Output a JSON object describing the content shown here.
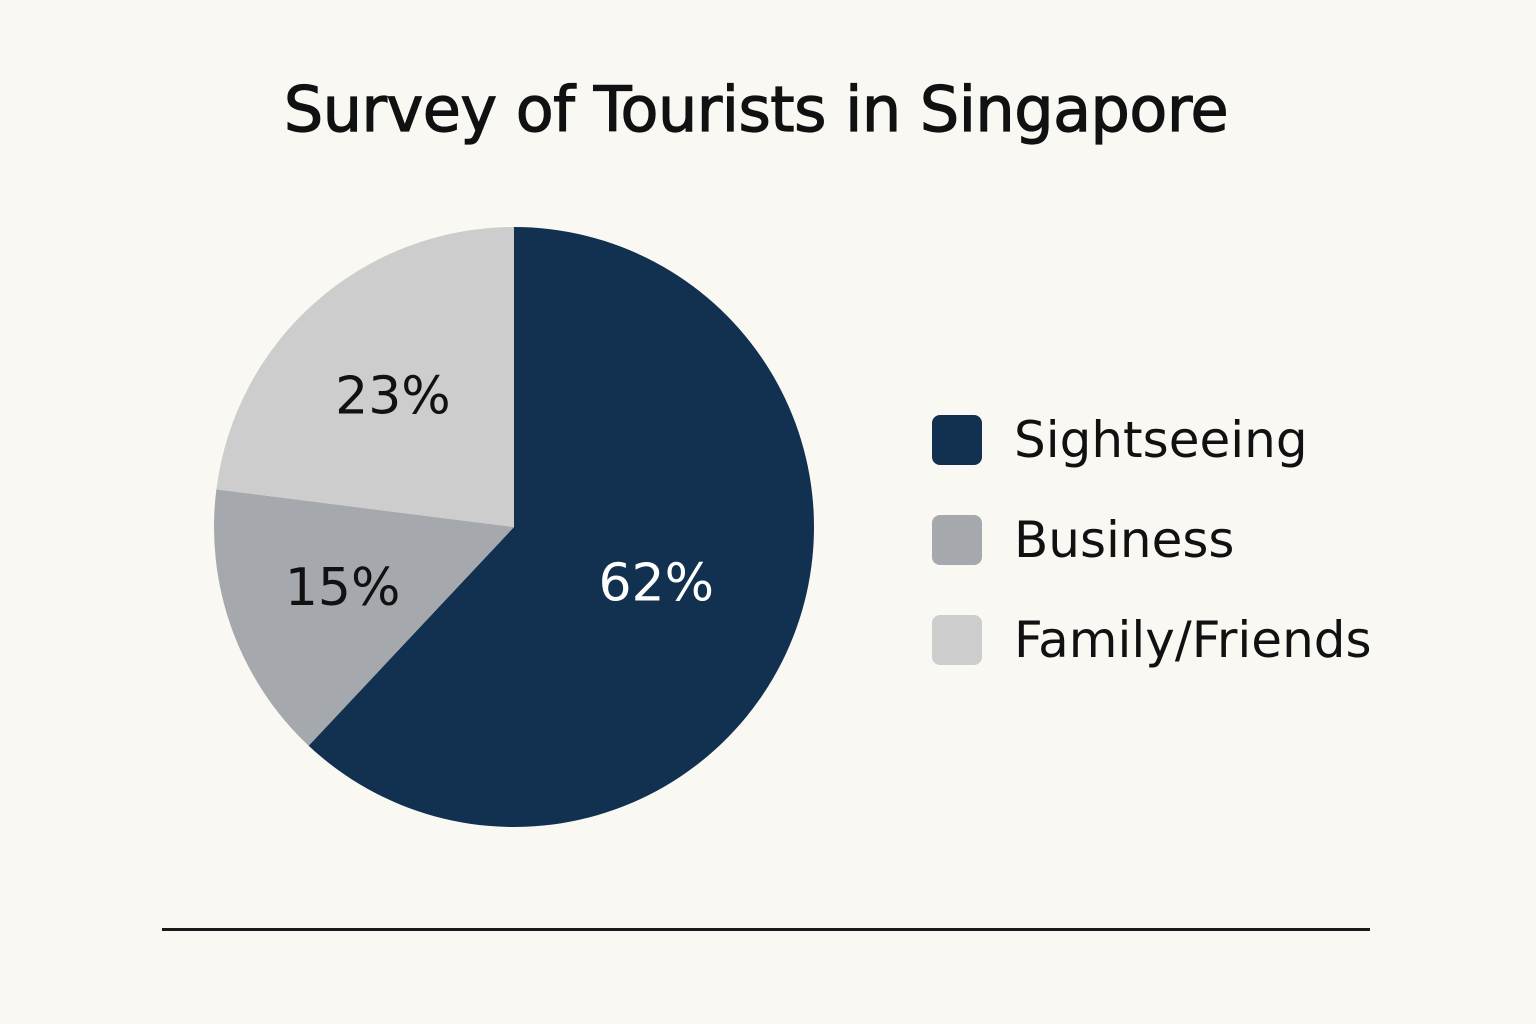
{
  "chart_data": {
    "type": "pie",
    "title": "Survey of Tourists in Singapore",
    "slices": [
      {
        "label": "Sightseeing",
        "value": 62,
        "display": "62%",
        "color": "#12304f",
        "text_color": "#ffffff"
      },
      {
        "label": "Business",
        "value": 15,
        "display": "15%",
        "color": "#a5a8ad",
        "text_color": "#111111"
      },
      {
        "label": "Family/Friends",
        "value": 23,
        "display": "23%",
        "color": "#cdcdcd",
        "text_color": "#111111"
      }
    ],
    "start_angle": "12 o'clock",
    "direction": "clockwise",
    "legend_position": "right"
  }
}
